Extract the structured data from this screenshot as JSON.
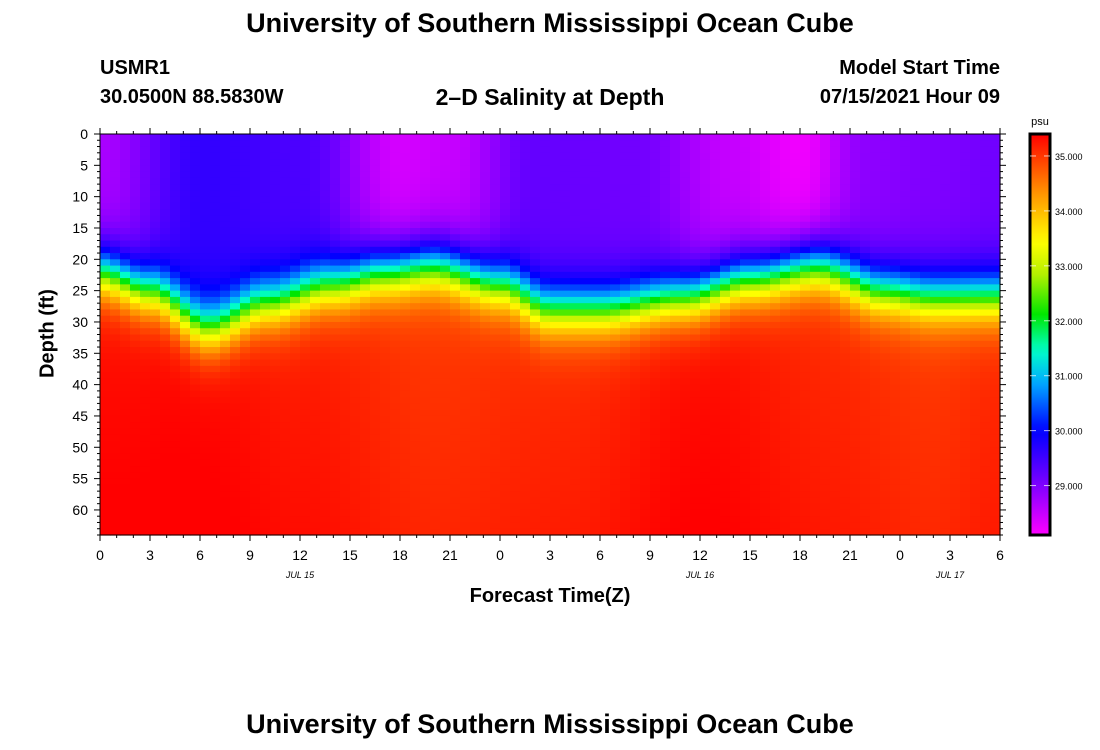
{
  "page": {
    "title_top": "University of Southern Mississippi Ocean Cube",
    "title_bottom": "University of Southern Mississippi Ocean Cube",
    "station": "USMR1",
    "coords": "30.0500N  88.5830W",
    "plot_title": "2–D Salinity at Depth",
    "model_label": "Model Start Time",
    "model_time": "07/15/2021 Hour 09"
  },
  "chart_data": {
    "type": "heatmap",
    "title": "2–D Salinity at Depth",
    "xlabel": "Forecast Time(Z)",
    "ylabel": "Depth (ft)",
    "x_hours_from_start": [
      0,
      54
    ],
    "x_tick_labels": [
      "0",
      "3",
      "6",
      "9",
      "12",
      "15",
      "18",
      "21",
      "0",
      "3",
      "6",
      "9",
      "12",
      "15",
      "18",
      "21",
      "0",
      "3",
      "6"
    ],
    "date_labels": [
      {
        "label": "JUL 15",
        "hour": 12
      },
      {
        "label": "JUL 16",
        "hour": 36
      },
      {
        "label": "JUL 17",
        "hour": 51
      }
    ],
    "y_range_ft": [
      0,
      64
    ],
    "y_tick_labels": [
      "0",
      "5",
      "10",
      "15",
      "20",
      "25",
      "30",
      "35",
      "40",
      "45",
      "50",
      "55",
      "60"
    ],
    "colorbar": {
      "unit": "psu",
      "range": [
        28.1,
        35.4
      ],
      "tick_labels": [
        "35.000",
        "34.000",
        "33.000",
        "32.000",
        "31.000",
        "30.000",
        "29.000"
      ]
    },
    "halocline_depth_ft": {
      "hours": [
        0,
        3,
        6.5,
        10,
        14,
        17,
        20,
        24,
        27,
        30,
        35,
        39,
        43,
        47,
        50,
        54
      ],
      "values": [
        22,
        25,
        31,
        27,
        24,
        22,
        21,
        24,
        28,
        28,
        26,
        23,
        21,
        25,
        26,
        26
      ]
    },
    "surface_salinity_psu": {
      "hours": [
        0,
        6,
        12,
        18,
        21,
        26,
        32,
        38,
        42,
        46,
        50,
        54
      ],
      "values": [
        28.7,
        29.6,
        29.4,
        28.4,
        28.5,
        29.2,
        29.1,
        28.5,
        28.2,
        28.9,
        29.0,
        29.1
      ]
    },
    "deep_salinity_psu": {
      "hours": [
        0,
        6,
        12,
        20,
        28,
        36,
        44,
        50,
        54
      ],
      "values": [
        35.3,
        35.35,
        35.2,
        35.0,
        35.1,
        35.3,
        35.1,
        35.0,
        35.1
      ]
    }
  }
}
